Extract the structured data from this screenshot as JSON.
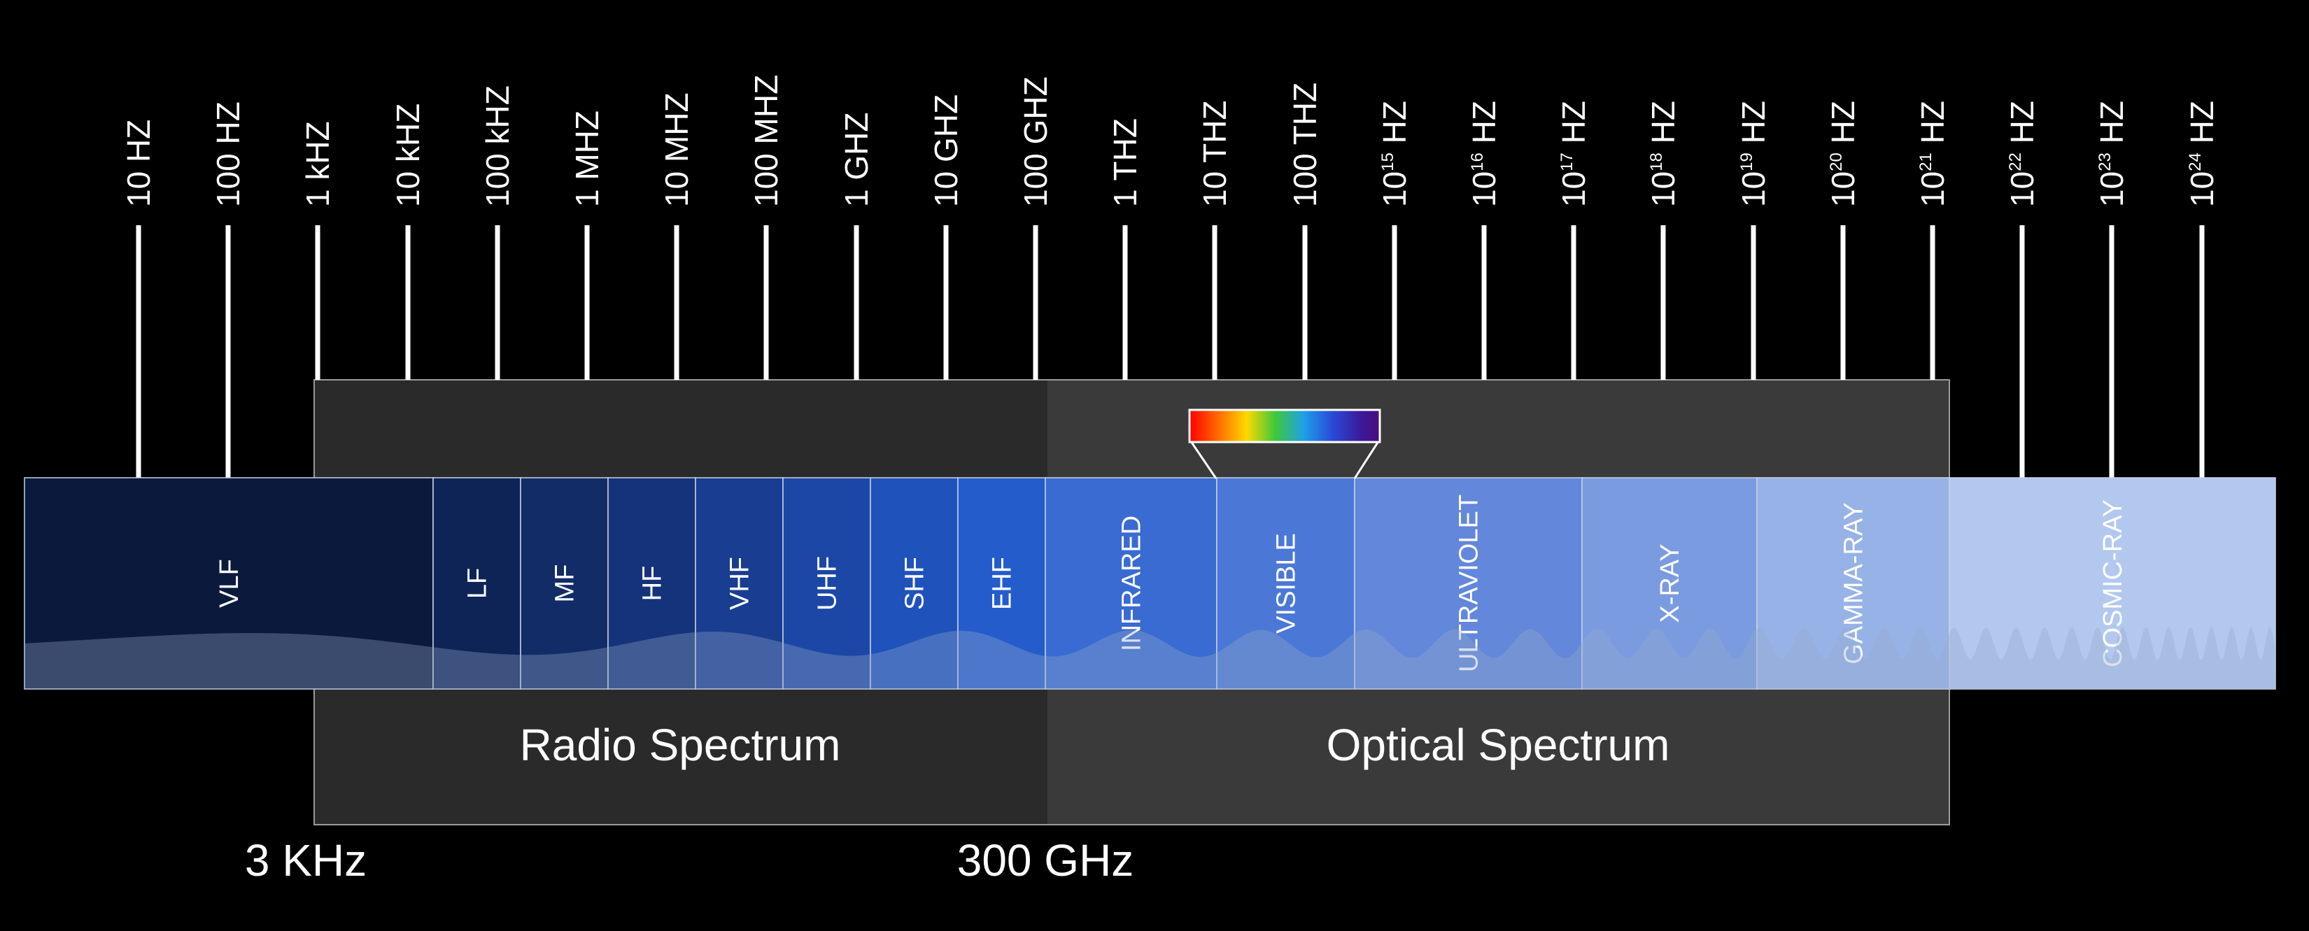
{
  "frequency_ticks": [
    {
      "base": "10 HZ",
      "sup": ""
    },
    {
      "base": "100 HZ",
      "sup": ""
    },
    {
      "base": "1 kHZ",
      "sup": ""
    },
    {
      "base": "10 kHZ",
      "sup": ""
    },
    {
      "base": "100 kHZ",
      "sup": ""
    },
    {
      "base": "1 MHZ",
      "sup": ""
    },
    {
      "base": "10 MHZ",
      "sup": ""
    },
    {
      "base": "100 MHZ",
      "sup": ""
    },
    {
      "base": "1 GHZ",
      "sup": ""
    },
    {
      "base": "10 GHZ",
      "sup": ""
    },
    {
      "base": "100 GHZ",
      "sup": ""
    },
    {
      "base": "1 THZ",
      "sup": ""
    },
    {
      "base": "10 THZ",
      "sup": ""
    },
    {
      "base": "100 THZ",
      "sup": ""
    },
    {
      "base": "10",
      "sup": "15",
      "unit": " HZ"
    },
    {
      "base": "10",
      "sup": "16",
      "unit": " HZ"
    },
    {
      "base": "10",
      "sup": "17",
      "unit": " HZ"
    },
    {
      "base": "10",
      "sup": "18",
      "unit": " HZ"
    },
    {
      "base": "10",
      "sup": "19",
      "unit": " HZ"
    },
    {
      "base": "10",
      "sup": "20",
      "unit": " HZ"
    },
    {
      "base": "10",
      "sup": "21",
      "unit": " HZ"
    },
    {
      "base": "10",
      "sup": "22",
      "unit": " HZ"
    },
    {
      "base": "10",
      "sup": "23",
      "unit": " HZ"
    },
    {
      "base": "10",
      "sup": "24",
      "unit": " HZ"
    }
  ],
  "bands": [
    {
      "label": "VLF",
      "color": "#0b1a3c"
    },
    {
      "label": "LF",
      "color": "#0f2456"
    },
    {
      "label": "MF",
      "color": "#122c68"
    },
    {
      "label": "HF",
      "color": "#15337a"
    },
    {
      "label": "VHF",
      "color": "#193d90"
    },
    {
      "label": "UHF",
      "color": "#1c47a6"
    },
    {
      "label": "SHF",
      "color": "#2052bc"
    },
    {
      "label": "EHF",
      "color": "#255ccc"
    },
    {
      "label": "INFRARED",
      "color": "#3a6bd2"
    },
    {
      "label": "VISIBLE",
      "color": "#4b78d6"
    },
    {
      "label": "ULTRAVIOLET",
      "color": "#6287db"
    },
    {
      "label": "X-RAY",
      "color": "#7a9be0"
    },
    {
      "label": "GAMMA-RAY",
      "color": "#97b2e6"
    },
    {
      "label": "COSMIC-RAY",
      "color": "#b3c8ee"
    }
  ],
  "regions": {
    "radio": "Radio Spectrum",
    "optical": "Optical Spectrum"
  },
  "boundaries": {
    "left": "3 KHz",
    "right": "300 GHz"
  },
  "colors": {
    "background": "#000000",
    "radio_panel": "#2a2a2a",
    "optical_panel": "#3a3a3a",
    "tick": "#ffffff"
  }
}
